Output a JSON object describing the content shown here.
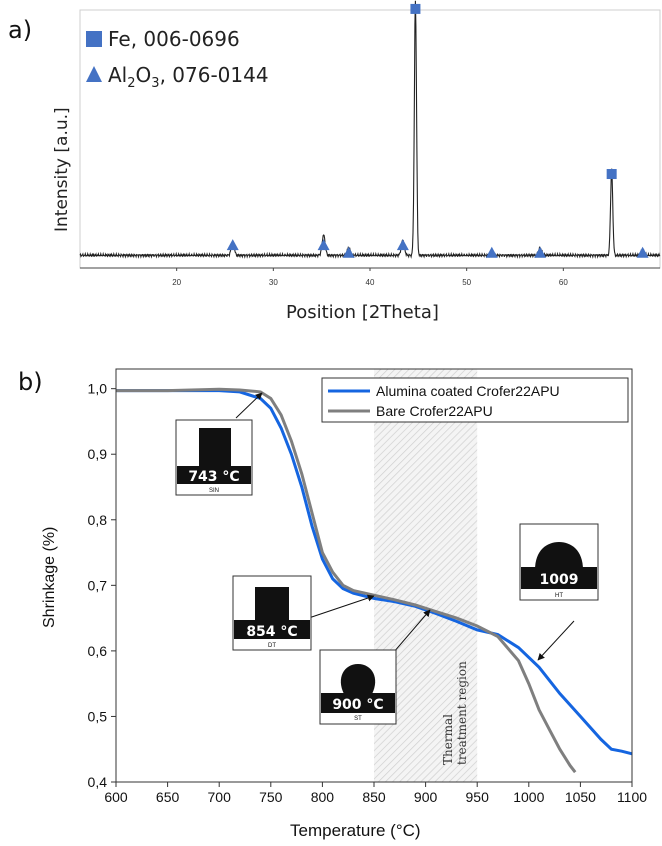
{
  "panel_a": {
    "label": "a)",
    "ylabel": "Intensity [a.u.]",
    "xlabel": "Position [2Theta]",
    "legend": [
      {
        "text": "Fe, 006-0696",
        "marker": "square"
      },
      {
        "text_main": "Al",
        "sub1": "2",
        "text_mid": "O",
        "sub2": "3",
        "text_end": ", 076-0144",
        "marker": "triangle"
      }
    ],
    "marker_color": "#4472c4"
  },
  "panel_b": {
    "label": "b)",
    "ylabel": "Shrinkage (%)",
    "xlabel": "Temperature (°C)",
    "region_label_1": "Thermal",
    "region_label_2": "treatment region",
    "insets": [
      {
        "temp": "743 °C",
        "tag": "SIN"
      },
      {
        "temp": "854 °C",
        "tag": "DT"
      },
      {
        "temp": "900 °C",
        "tag": "ST"
      },
      {
        "temp": "1009",
        "tag": "HT"
      }
    ]
  },
  "chart_data": [
    {
      "type": "line",
      "xlim": [
        10,
        70
      ],
      "x_ticks": [
        20,
        30,
        40,
        50,
        60
      ],
      "x_tick_labels": [
        "20",
        "30",
        "40",
        "50",
        "60"
      ],
      "baseline": 0.05,
      "peaks": [
        {
          "x": 25.8,
          "h": 0.05
        },
        {
          "x": 35.2,
          "h": 0.08
        },
        {
          "x": 37.8,
          "h": 0.03
        },
        {
          "x": 43.4,
          "h": 0.06
        },
        {
          "x": 44.7,
          "h": 1.0
        },
        {
          "x": 52.6,
          "h": 0.01
        },
        {
          "x": 57.6,
          "h": 0.03
        },
        {
          "x": 65.0,
          "h": 0.34
        },
        {
          "x": 68.2,
          "h": 0.02
        }
      ],
      "markers": [
        {
          "x": 44.7,
          "y": 1.02,
          "kind": "square"
        },
        {
          "x": 65.0,
          "y": 0.37,
          "kind": "square"
        },
        {
          "x": 25.8,
          "y": 0.09,
          "kind": "triangle"
        },
        {
          "x": 35.2,
          "y": 0.09,
          "kind": "triangle"
        },
        {
          "x": 37.8,
          "y": 0.06,
          "kind": "triangle"
        },
        {
          "x": 43.4,
          "y": 0.09,
          "kind": "triangle"
        },
        {
          "x": 52.6,
          "y": 0.06,
          "kind": "triangle"
        },
        {
          "x": 57.6,
          "y": 0.06,
          "kind": "triangle"
        },
        {
          "x": 68.2,
          "y": 0.06,
          "kind": "triangle"
        }
      ]
    },
    {
      "type": "line",
      "xlim": [
        600,
        1100
      ],
      "ylim": [
        0.4,
        1.03
      ],
      "x_ticks": [
        600,
        650,
        700,
        750,
        800,
        850,
        900,
        950,
        1000,
        1050,
        1100
      ],
      "x_tick_labels": [
        "600",
        "650",
        "700",
        "750",
        "800",
        "850",
        "900",
        "950",
        "1000",
        "1050",
        "1100"
      ],
      "y_ticks": [
        0.4,
        0.5,
        0.6,
        0.7,
        0.8,
        0.9,
        1.0
      ],
      "y_tick_labels": [
        "0,4",
        "0,5",
        "0,6",
        "0,7",
        "0,8",
        "0,9",
        "1,0"
      ],
      "shaded_region": [
        850,
        950
      ],
      "series": [
        {
          "name": "Alumina coated Crofer22APU",
          "color": "#1565e0",
          "x": [
            600,
            650,
            700,
            720,
            740,
            750,
            760,
            770,
            780,
            790,
            800,
            810,
            820,
            830,
            850,
            870,
            890,
            910,
            930,
            950,
            970,
            990,
            1010,
            1030,
            1050,
            1070,
            1080,
            1090,
            1100
          ],
          "y": [
            0.997,
            0.997,
            0.997,
            0.995,
            0.985,
            0.97,
            0.94,
            0.9,
            0.85,
            0.79,
            0.74,
            0.71,
            0.695,
            0.688,
            0.68,
            0.675,
            0.668,
            0.657,
            0.645,
            0.632,
            0.625,
            0.605,
            0.575,
            0.535,
            0.5,
            0.465,
            0.45,
            0.447,
            0.443
          ]
        },
        {
          "name": "Bare Crofer22APU",
          "color": "#7f7f7f",
          "x": [
            600,
            650,
            700,
            720,
            740,
            750,
            760,
            770,
            780,
            790,
            800,
            810,
            820,
            830,
            850,
            870,
            890,
            910,
            930,
            950,
            970,
            990,
            1000,
            1010,
            1020,
            1030,
            1040,
            1045
          ],
          "y": [
            0.997,
            0.997,
            0.999,
            0.998,
            0.995,
            0.985,
            0.96,
            0.92,
            0.87,
            0.81,
            0.75,
            0.72,
            0.7,
            0.692,
            0.685,
            0.678,
            0.67,
            0.66,
            0.65,
            0.638,
            0.622,
            0.585,
            0.55,
            0.51,
            0.48,
            0.45,
            0.425,
            0.415
          ]
        }
      ]
    }
  ]
}
